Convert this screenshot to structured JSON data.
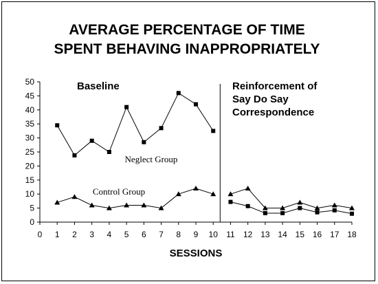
{
  "chart_data": {
    "type": "line",
    "title_lines": [
      "AVERAGE PERCENTAGE OF TIME",
      "SPENT BEHAVING INAPPROPRIATELY"
    ],
    "title": "AVERAGE PERCENTAGE OF TIME SPENT BEHAVING INAPPROPRIATELY",
    "xlabel": "SESSIONS",
    "ylabel": "",
    "xlim": [
      0,
      18
    ],
    "ylim": [
      0,
      50
    ],
    "x_ticks": [
      0,
      1,
      2,
      3,
      4,
      5,
      6,
      7,
      8,
      9,
      10,
      11,
      12,
      13,
      14,
      15,
      16,
      17,
      18
    ],
    "y_ticks": [
      0,
      5,
      10,
      15,
      20,
      25,
      30,
      35,
      40,
      45,
      50
    ],
    "phase_change_x": 10.4,
    "phases": [
      {
        "label_lines": [
          "Baseline"
        ],
        "label": "Baseline"
      },
      {
        "label_lines": [
          "Reinforcement of",
          "Say Do Say",
          "Correspondence"
        ],
        "label": "Reinforcement of Say Do Say Correspondence"
      }
    ],
    "series": [
      {
        "name": "Neglect Group",
        "marker": "square",
        "segments": [
          {
            "x": [
              1,
              2,
              3,
              4,
              5,
              6,
              7,
              8,
              9,
              10
            ],
            "y": [
              34.5,
              23.8,
              29,
              25,
              41,
              28.5,
              33.5,
              46,
              42,
              32.5
            ]
          },
          {
            "x": [
              11,
              12,
              13,
              14,
              15,
              16,
              17,
              18
            ],
            "y": [
              7.2,
              5.7,
              3.2,
              3.2,
              5,
              3.5,
              4.2,
              3
            ]
          }
        ]
      },
      {
        "name": "Control Group",
        "marker": "triangle",
        "segments": [
          {
            "x": [
              1,
              2,
              3,
              4,
              5,
              6,
              7,
              8,
              9,
              10
            ],
            "y": [
              7,
              9,
              6,
              5,
              6,
              6,
              5,
              10,
              12,
              10
            ]
          },
          {
            "x": [
              11,
              12,
              13,
              14,
              15,
              16,
              17,
              18
            ],
            "y": [
              10,
              12,
              5,
              5,
              7,
              5,
              6,
              5
            ]
          }
        ]
      }
    ]
  }
}
